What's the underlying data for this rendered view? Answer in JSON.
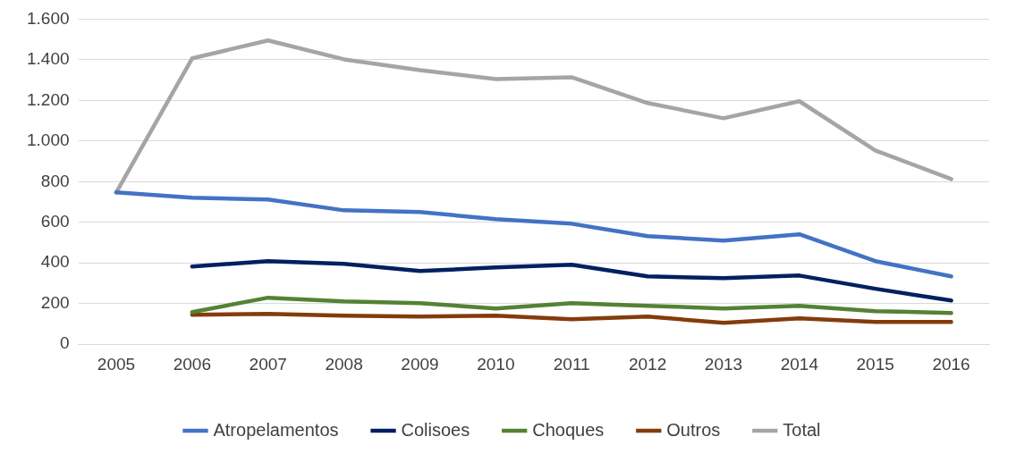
{
  "chart_data": {
    "type": "line",
    "categories": [
      "2005",
      "2006",
      "2007",
      "2008",
      "2009",
      "2010",
      "2011",
      "2012",
      "2013",
      "2014",
      "2015",
      "2016"
    ],
    "series": [
      {
        "name": "Atropelamentos",
        "color": "#4472c4",
        "values": [
          747,
          721,
          712,
          659,
          651,
          615,
          593,
          532,
          510,
          541,
          409,
          334
        ]
      },
      {
        "name": "Colisoes",
        "color": "#002060",
        "values": [
          null,
          382,
          409,
          396,
          360,
          378,
          391,
          334,
          325,
          338,
          273,
          215
        ]
      },
      {
        "name": "Choques",
        "color": "#548235",
        "values": [
          null,
          158,
          229,
          211,
          202,
          176,
          202,
          189,
          176,
          189,
          163,
          154
        ]
      },
      {
        "name": "Outros",
        "color": "#843c0c",
        "values": [
          null,
          145,
          149,
          141,
          136,
          141,
          123,
          136,
          105,
          127,
          110,
          110
        ]
      },
      {
        "name": "Total",
        "color": "#a5a5a5",
        "values": [
          747,
          1407,
          1495,
          1402,
          1349,
          1305,
          1314,
          1187,
          1112,
          1196,
          954,
          813
        ]
      }
    ],
    "ylim": [
      0,
      1600
    ],
    "yticks": [
      0,
      {
        "value": 200,
        "label": "200"
      },
      {
        "value": 400,
        "label": "400"
      },
      {
        "value": 600,
        "label": "600"
      },
      {
        "value": 800,
        "label": "800"
      },
      {
        "value": 1000,
        "label": "1.000"
      },
      {
        "value": 1200,
        "label": "1.200"
      },
      {
        "value": 1400,
        "label": "1.400"
      },
      {
        "value": 1600,
        "label": "1.600"
      }
    ],
    "grid": "y",
    "legend": "bottom",
    "marker": "none",
    "line_style": "solid"
  }
}
